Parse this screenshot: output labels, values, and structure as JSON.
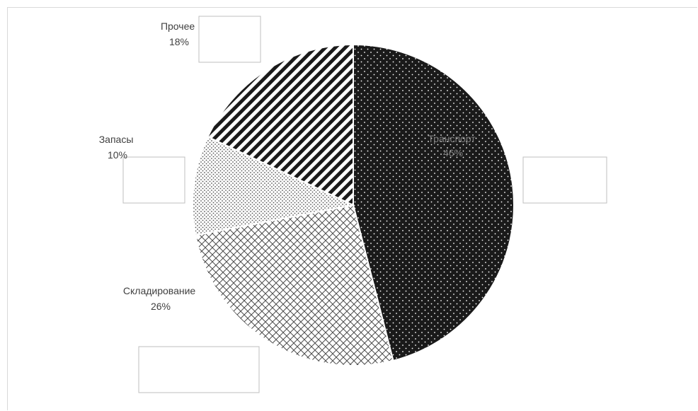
{
  "chart_data": {
    "type": "pie",
    "title": "",
    "slices": [
      {
        "label": "Транспорт",
        "value": 46,
        "pct_label": "46%",
        "pattern": "dots-dark"
      },
      {
        "label": "Складирование",
        "value": 26,
        "pct_label": "26%",
        "pattern": "crosshatch"
      },
      {
        "label": "Запасы",
        "value": 10,
        "pct_label": "10%",
        "pattern": "dots-light"
      },
      {
        "label": "Прочее",
        "value": 18,
        "pct_label": "18%",
        "pattern": "diagonal-stripes"
      }
    ],
    "start_angle_deg": 0,
    "direction": "clockwise",
    "legend": "none",
    "colors": {
      "dark": "#1a1a1a",
      "stroke": "#ffffff",
      "label_text": "#404040",
      "inner_label_text": "#7f7f7f",
      "box_border": "#bfbfbf"
    }
  }
}
